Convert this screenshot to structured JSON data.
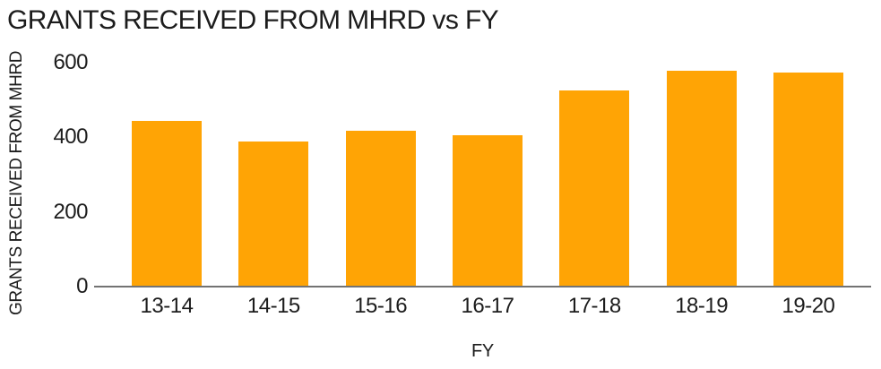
{
  "colors": {
    "bar": "#ffa405",
    "axis_line": "#737373",
    "text": "#1c1c1c",
    "background": "#ffffff"
  },
  "chart_data": {
    "type": "bar",
    "title": "GRANTS RECEIVED FROM MHRD vs FY",
    "categories": [
      "13-14",
      "14-15",
      "15-16",
      "16-17",
      "17-18",
      "18-19",
      "19-20"
    ],
    "values": [
      445,
      390,
      418,
      406,
      526,
      578,
      574
    ],
    "xlabel": "FY",
    "ylabel": "GRANTS RECEIVED FROM MHRD",
    "ylim": [
      0,
      600
    ],
    "yticks": [
      0,
      200,
      400,
      600
    ],
    "bar_color": "#ffa405",
    "grid": false,
    "legend": false,
    "layout": "vertical bars, title top-left, y axis labels left, x labels below baseline"
  }
}
